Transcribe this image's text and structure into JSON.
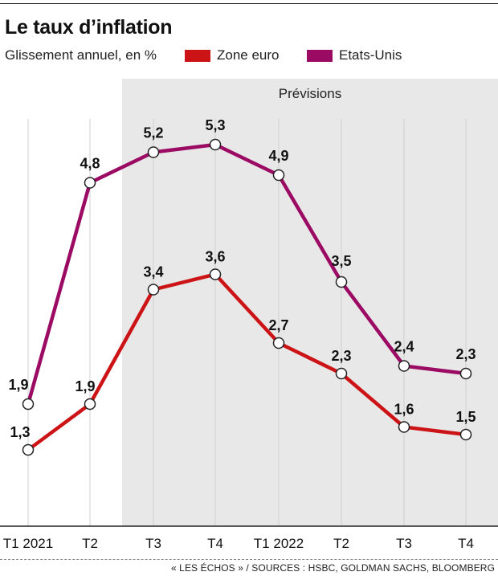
{
  "title": "Le taux d’inflation",
  "subtitle": "Glissement annuel, en %",
  "source": "« LES ÉCHOS » / SOURCES : HSBC, GOLDMAN SACHS, BLOOMBERG",
  "colors": {
    "zone_euro": "#cc1417",
    "etats_unis": "#9b0a63",
    "forecast_bg": "#e8e8e8"
  },
  "chart_data": {
    "type": "line",
    "title": "Le taux d’inflation",
    "subtitle": "Glissement annuel, en %",
    "categories": [
      "T1 2021",
      "T2",
      "T3",
      "T4",
      "T1 2022",
      "T2",
      "T3",
      "T4"
    ],
    "series": [
      {
        "name": "Zone euro",
        "color": "#cc1417",
        "values": [
          1.3,
          1.9,
          3.4,
          3.6,
          2.7,
          2.3,
          1.6,
          1.5
        ],
        "labels": [
          "1,3",
          "1,9",
          "3,4",
          "3,6",
          "2,7",
          "2,3",
          "1,6",
          "1,5"
        ]
      },
      {
        "name": "Etats-Unis",
        "color": "#9b0a63",
        "values": [
          1.9,
          4.8,
          5.2,
          5.3,
          4.9,
          3.5,
          2.4,
          2.3
        ],
        "labels": [
          "1,9",
          "4,8",
          "5,2",
          "5,3",
          "4,9",
          "3,5",
          "2,4",
          "2,3"
        ]
      }
    ],
    "shaded_region": {
      "label": "Prévisions",
      "from_category": 2,
      "to_category": 7
    },
    "legend": "top",
    "grid": "vertical"
  }
}
